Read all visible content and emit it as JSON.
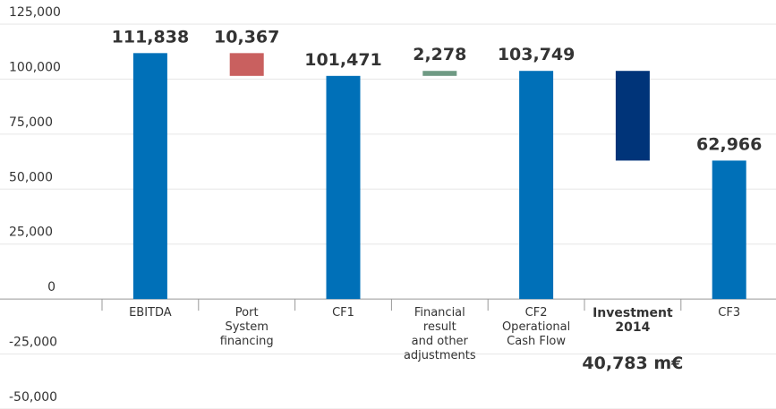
{
  "chart_data": {
    "type": "waterfall",
    "categories": [
      "EBITDA",
      "Port\nSystem\nfinancing",
      "CF1",
      "Financial\nresult\nand other\nadjustments",
      "CF2\nOperational\nCash Flow",
      "Investment\n2014",
      "CF3"
    ],
    "measure": [
      "absolute",
      "relative",
      "absolute",
      "relative",
      "absolute",
      "relative",
      "absolute"
    ],
    "values": [
      111838,
      -10367,
      101471,
      2278,
      103749,
      -40783,
      62966
    ],
    "value_labels": [
      "111,838",
      "10,367",
      "101,471",
      "2,278",
      "103,749",
      "40,783 m€",
      "62,966"
    ],
    "colors": [
      "#0070b8",
      "#c9605f",
      "#0070b8",
      "#6f9a84",
      "#0070b8",
      "#003479",
      "#0070b8"
    ],
    "bold_categories": [
      5
    ],
    "ylim": [
      -50000,
      125000
    ],
    "yticks": [
      {
        "value": -50000,
        "label": "-50,000"
      },
      {
        "value": -25000,
        "label": "-25,000"
      },
      0,
      {
        "value": 25000,
        "label": "25,000"
      },
      {
        "value": 50000,
        "label": "50,000"
      },
      {
        "value": 75000,
        "label": "75,000"
      },
      {
        "value": 100000,
        "label": "100,000"
      },
      {
        "value": 125000,
        "label": "125,000"
      }
    ],
    "grid": true
  }
}
